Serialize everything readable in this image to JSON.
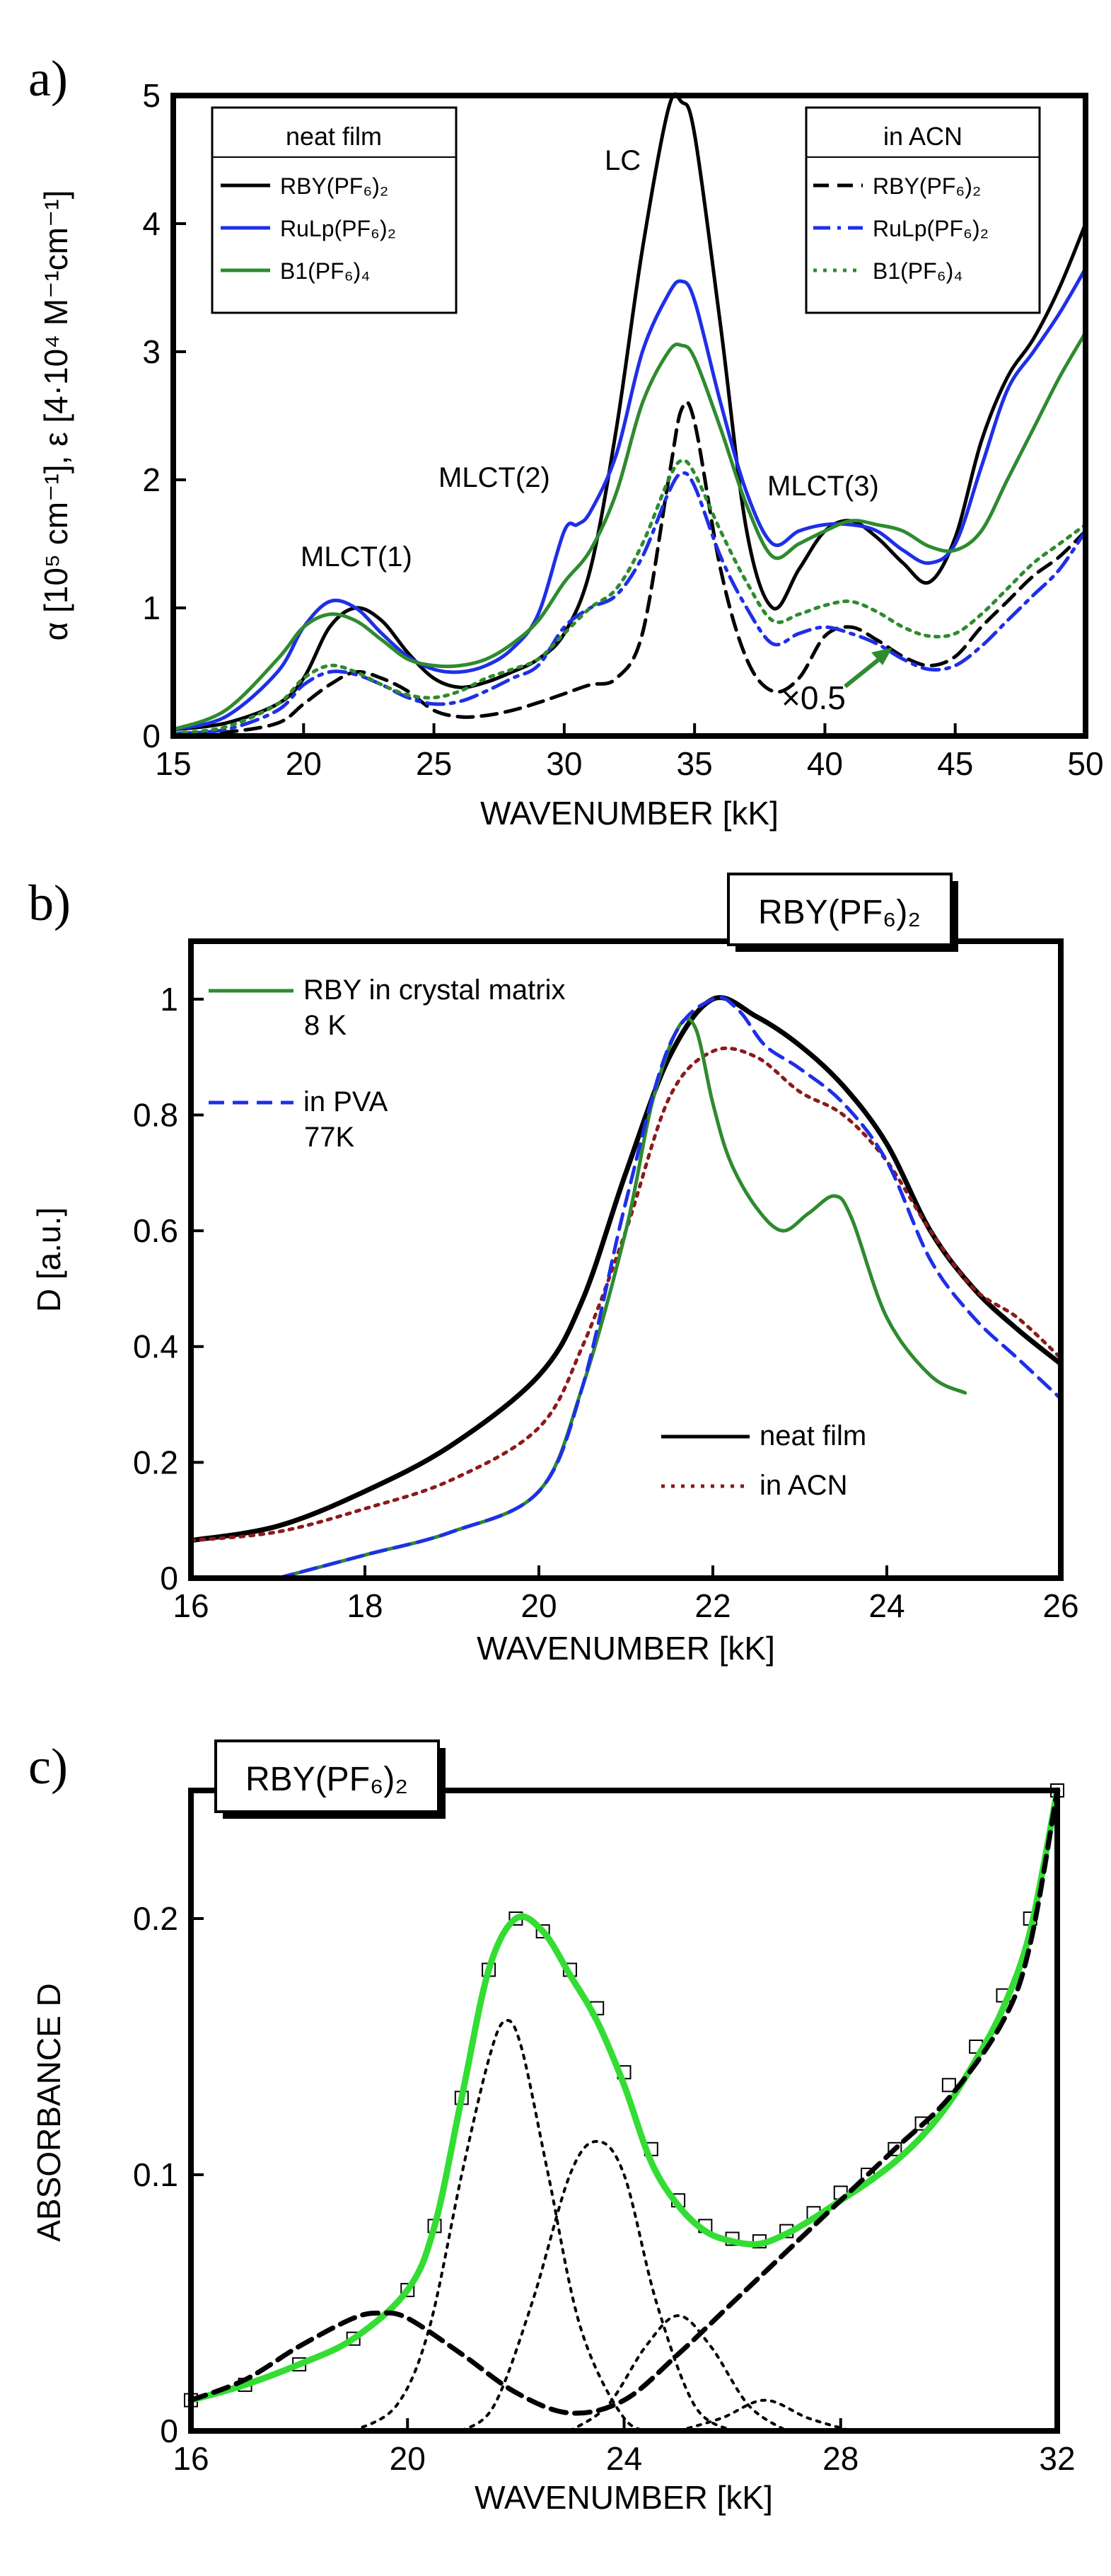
{
  "chart_data": [
    {
      "panel": "a)",
      "type": "line",
      "xlabel": "WAVENUMBER [kK]",
      "ylabel": "α [10⁵ cm⁻¹], ε [4·10⁴ M⁻¹cm⁻¹]",
      "xlim": [
        15,
        50
      ],
      "ylim": [
        0,
        5
      ],
      "xticks": [
        "15",
        "20",
        "25",
        "30",
        "35",
        "40",
        "45",
        "50"
      ],
      "yticks": [
        "0",
        "1",
        "2",
        "3",
        "4",
        "5"
      ],
      "legend_neat_title": "neat film",
      "legend_acn_title": "in ACN",
      "annotations": {
        "lc": "LC",
        "mlct1": "MLCT(1)",
        "mlct2": "MLCT(2)",
        "mlct3": "MLCT(3)",
        "scale": "×0.5"
      },
      "series": [
        {
          "name": "RBY(PF6)2",
          "group": "neat film",
          "color": "#000000",
          "dash": "solid",
          "x": [
            15,
            17,
            19,
            20,
            21,
            22,
            23,
            24,
            25,
            26,
            27,
            28,
            29,
            30,
            31,
            32,
            33,
            34,
            34.5,
            35,
            36,
            37,
            38,
            39,
            40,
            41,
            42,
            43,
            44,
            45,
            46,
            47,
            48,
            49,
            50
          ],
          "y": [
            0.05,
            0.1,
            0.25,
            0.45,
            0.85,
            1.0,
            0.9,
            0.65,
            0.45,
            0.38,
            0.42,
            0.5,
            0.6,
            0.8,
            1.3,
            2.4,
            3.8,
            4.9,
            4.95,
            4.7,
            3.2,
            1.6,
            1.0,
            1.3,
            1.6,
            1.68,
            1.55,
            1.35,
            1.2,
            1.55,
            2.3,
            2.8,
            3.1,
            3.5,
            4.0
          ]
        },
        {
          "name": "RuLp(PF6)2",
          "group": "neat film",
          "color": "#1f2fe6",
          "dash": "solid",
          "x": [
            15,
            17,
            19,
            20,
            21,
            22,
            23,
            24,
            25,
            26,
            27,
            28,
            29,
            30,
            30.5,
            31,
            32,
            33,
            34,
            34.5,
            35,
            36,
            37,
            38,
            39,
            40,
            41,
            42,
            43,
            44,
            45,
            46,
            47,
            48,
            49,
            50
          ],
          "y": [
            0.05,
            0.15,
            0.5,
            0.85,
            1.05,
            1.0,
            0.8,
            0.62,
            0.52,
            0.5,
            0.55,
            0.68,
            0.95,
            1.6,
            1.65,
            1.75,
            2.2,
            3.0,
            3.45,
            3.55,
            3.4,
            2.6,
            1.9,
            1.5,
            1.6,
            1.65,
            1.65,
            1.6,
            1.45,
            1.35,
            1.5,
            2.1,
            2.7,
            3.0,
            3.3,
            3.65
          ]
        },
        {
          "name": "B1(PF6)4",
          "group": "neat film",
          "color": "#2e8b2e",
          "dash": "solid",
          "x": [
            15,
            17,
            19,
            20,
            21,
            22,
            23,
            24,
            25,
            26,
            27,
            28,
            29,
            30,
            31,
            32,
            33,
            34,
            34.5,
            35,
            36,
            37,
            38,
            39,
            40,
            41,
            42,
            43,
            44,
            45,
            46,
            47,
            48,
            49,
            50
          ],
          "y": [
            0.05,
            0.2,
            0.6,
            0.85,
            0.95,
            0.9,
            0.75,
            0.6,
            0.55,
            0.55,
            0.6,
            0.72,
            0.9,
            1.2,
            1.45,
            1.9,
            2.6,
            3.0,
            3.05,
            2.95,
            2.4,
            1.8,
            1.4,
            1.5,
            1.6,
            1.68,
            1.65,
            1.6,
            1.48,
            1.45,
            1.6,
            2.0,
            2.4,
            2.8,
            3.15
          ]
        },
        {
          "name": "RBY(PF6)2",
          "group": "in ACN",
          "color": "#000000",
          "dash": "dash",
          "x": [
            15,
            17,
            19,
            20,
            21,
            22,
            23,
            24,
            25,
            26,
            27,
            28,
            29,
            30,
            31,
            32,
            33,
            34,
            34.5,
            35,
            36,
            37,
            38,
            39,
            40,
            41,
            42,
            43,
            44,
            45,
            46,
            47,
            48,
            49,
            50
          ],
          "y": [
            0.02,
            0.03,
            0.1,
            0.25,
            0.4,
            0.5,
            0.45,
            0.35,
            0.2,
            0.15,
            0.16,
            0.2,
            0.26,
            0.33,
            0.4,
            0.45,
            0.8,
            2.0,
            2.55,
            2.45,
            1.3,
            0.6,
            0.35,
            0.45,
            0.78,
            0.85,
            0.75,
            0.62,
            0.55,
            0.62,
            0.85,
            1.05,
            1.25,
            1.4,
            1.6
          ]
        },
        {
          "name": "RuLp(PF6)2",
          "group": "in ACN",
          "color": "#1f2fe6",
          "dash": "dashdot",
          "x": [
            15,
            17,
            19,
            20,
            21,
            22,
            23,
            24,
            25,
            26,
            27,
            28,
            29,
            30,
            31,
            32,
            33,
            34,
            34.5,
            35,
            36,
            37,
            38,
            39,
            40,
            41,
            42,
            43,
            44,
            45,
            46,
            47,
            48,
            49,
            50
          ],
          "y": [
            0.02,
            0.05,
            0.2,
            0.4,
            0.5,
            0.48,
            0.4,
            0.3,
            0.25,
            0.27,
            0.35,
            0.45,
            0.55,
            0.85,
            1.0,
            1.1,
            1.4,
            1.9,
            2.05,
            1.95,
            1.4,
            1.0,
            0.72,
            0.8,
            0.85,
            0.8,
            0.72,
            0.6,
            0.52,
            0.55,
            0.7,
            0.9,
            1.1,
            1.3,
            1.6
          ]
        },
        {
          "name": "B1(PF6)4",
          "group": "in ACN",
          "color": "#2e8b2e",
          "dash": "dot",
          "x": [
            15,
            17,
            19,
            20,
            21,
            22,
            23,
            24,
            25,
            26,
            27,
            28,
            29,
            30,
            31,
            32,
            33,
            34,
            34.5,
            35,
            36,
            37,
            38,
            39,
            40,
            41,
            42,
            43,
            44,
            45,
            46,
            47,
            48,
            49,
            50
          ],
          "y": [
            0.02,
            0.07,
            0.25,
            0.45,
            0.55,
            0.5,
            0.4,
            0.32,
            0.3,
            0.35,
            0.45,
            0.52,
            0.6,
            0.8,
            1.0,
            1.15,
            1.5,
            2.0,
            2.15,
            2.05,
            1.6,
            1.2,
            0.9,
            0.95,
            1.02,
            1.05,
            0.97,
            0.85,
            0.78,
            0.8,
            0.95,
            1.15,
            1.35,
            1.5,
            1.65
          ]
        }
      ],
      "legend": [
        {
          "label": "RBY(PF₆)₂",
          "color": "#000000",
          "dash": "solid"
        },
        {
          "label": "RuLp(PF₆)₂",
          "color": "#1f2fe6",
          "dash": "solid"
        },
        {
          "label": "B1(PF₆)₄",
          "color": "#2e8b2e",
          "dash": "solid"
        },
        {
          "label": "RBY(PF₆)₂",
          "color": "#000000",
          "dash": "dash"
        },
        {
          "label": "RuLp(PF₆)₂",
          "color": "#1f2fe6",
          "dash": "dashdot"
        },
        {
          "label": "B1(PF₆)₄",
          "color": "#2e8b2e",
          "dash": "dot"
        }
      ]
    },
    {
      "panel": "b)",
      "type": "line",
      "title": "RBY(PF₆)₂",
      "xlabel": "WAVENUMBER [kK]",
      "ylabel": "D [a.u.]",
      "xlim": [
        16,
        26
      ],
      "ylim": [
        0,
        1.1
      ],
      "xticks": [
        "16",
        "18",
        "20",
        "22",
        "24",
        "26"
      ],
      "yticks": [
        "0",
        "0.2",
        "0.4",
        "0.6",
        "0.8",
        "1"
      ],
      "series": [
        {
          "name": "neat film",
          "color": "#000000",
          "dash": "solid",
          "x": [
            16,
            17,
            18,
            19,
            20,
            20.5,
            21,
            21.5,
            22,
            22.5,
            23,
            23.5,
            24,
            24.5,
            25,
            25.5,
            26
          ],
          "y": [
            0.065,
            0.09,
            0.15,
            0.23,
            0.35,
            0.48,
            0.7,
            0.9,
            1.0,
            0.97,
            0.92,
            0.85,
            0.75,
            0.6,
            0.5,
            0.43,
            0.37
          ]
        },
        {
          "name": "in ACN",
          "color": "#8b1a1a",
          "dash": "dot",
          "x": [
            16,
            17,
            18,
            19,
            20,
            20.5,
            21,
            21.5,
            22,
            22.5,
            23,
            23.5,
            24,
            24.5,
            25,
            25.5,
            26
          ],
          "y": [
            0.065,
            0.08,
            0.12,
            0.17,
            0.26,
            0.4,
            0.6,
            0.83,
            0.91,
            0.9,
            0.84,
            0.8,
            0.72,
            0.6,
            0.5,
            0.45,
            0.38
          ]
        },
        {
          "name": "RBY in crystal matrix 8 K",
          "color": "#2e8b2e",
          "dash": "solid",
          "x": [
            17,
            18,
            19,
            20,
            20.5,
            21,
            21.3,
            21.6,
            21.8,
            22,
            22.2,
            22.5,
            22.8,
            23.1,
            23.4,
            23.6,
            24,
            24.5,
            24.9
          ],
          "y": [
            0.0,
            0.04,
            0.08,
            0.15,
            0.33,
            0.6,
            0.82,
            0.95,
            0.95,
            0.82,
            0.72,
            0.64,
            0.6,
            0.63,
            0.66,
            0.62,
            0.45,
            0.35,
            0.32
          ]
        },
        {
          "name": "in PVA 77K",
          "color": "#1f2fe6",
          "dash": "dash",
          "x": [
            17,
            18,
            19,
            20,
            20.5,
            21,
            21.5,
            22,
            22.3,
            22.6,
            23,
            23.5,
            24,
            24.5,
            25,
            25.5,
            26
          ],
          "y": [
            0.0,
            0.04,
            0.08,
            0.15,
            0.33,
            0.65,
            0.92,
            1.0,
            0.98,
            0.92,
            0.88,
            0.82,
            0.72,
            0.55,
            0.45,
            0.38,
            0.31
          ]
        }
      ],
      "legend": [
        {
          "label": "RBY in crystal matrix",
          "sub": "8 K",
          "color": "#2e8b2e",
          "dash": "solid"
        },
        {
          "label": "in PVA",
          "sub": "77K",
          "color": "#1f2fe6",
          "dash": "dash"
        },
        {
          "label": "neat film",
          "color": "#000000",
          "dash": "solid"
        },
        {
          "label": "in ACN",
          "color": "#8b1a1a",
          "dash": "dot"
        }
      ]
    },
    {
      "panel": "c)",
      "type": "line",
      "title": "RBY(PF₆)₂",
      "xlabel": "WAVENUMBER [kK]",
      "ylabel": "ABSORBANCE D",
      "xlim": [
        16,
        32
      ],
      "ylim": [
        0,
        0.25
      ],
      "xticks": [
        "16",
        "20",
        "24",
        "28",
        "32"
      ],
      "yticks": [
        "0",
        "0.1",
        "0.2"
      ],
      "series": [
        {
          "name": "measured",
          "color": "#000000",
          "style": "open-squares",
          "x": [
            16,
            17,
            18,
            19,
            20,
            20.5,
            21,
            21.5,
            22,
            22.5,
            23,
            23.5,
            24,
            24.5,
            25,
            25.5,
            26,
            26.5,
            27,
            27.5,
            28,
            28.5,
            29,
            29.5,
            30,
            30.5,
            31,
            31.5,
            32
          ],
          "y": [
            0.012,
            0.018,
            0.026,
            0.036,
            0.055,
            0.08,
            0.13,
            0.18,
            0.2,
            0.195,
            0.18,
            0.165,
            0.14,
            0.11,
            0.09,
            0.08,
            0.075,
            0.074,
            0.078,
            0.085,
            0.093,
            0.1,
            0.11,
            0.12,
            0.135,
            0.15,
            0.17,
            0.2,
            0.25
          ]
        },
        {
          "name": "fit",
          "color": "#33dd33",
          "dash": "solid",
          "x": [
            16,
            17,
            18,
            19,
            20,
            20.5,
            21,
            21.5,
            22,
            22.5,
            23,
            23.5,
            24,
            24.5,
            25,
            25.5,
            26,
            26.5,
            27,
            27.5,
            28,
            28.5,
            29,
            29.5,
            30,
            30.5,
            31,
            31.5,
            32
          ],
          "y": [
            0.012,
            0.018,
            0.026,
            0.036,
            0.055,
            0.08,
            0.13,
            0.18,
            0.2,
            0.195,
            0.178,
            0.16,
            0.135,
            0.105,
            0.088,
            0.078,
            0.074,
            0.073,
            0.077,
            0.083,
            0.09,
            0.097,
            0.105,
            0.115,
            0.128,
            0.145,
            0.165,
            0.195,
            0.25
          ]
        },
        {
          "name": "background",
          "color": "#000000",
          "dash": "dash",
          "x": [
            16,
            17,
            18,
            19,
            19.5,
            20,
            21,
            22,
            23,
            24,
            25,
            26,
            27,
            28,
            29,
            30,
            31,
            31.5,
            32
          ],
          "y": [
            0.012,
            0.02,
            0.033,
            0.044,
            0.046,
            0.044,
            0.03,
            0.015,
            0.007,
            0.012,
            0.03,
            0.05,
            0.07,
            0.09,
            0.11,
            0.13,
            0.16,
            0.19,
            0.25
          ]
        },
        {
          "name": "band 1",
          "color": "#000000",
          "dash": "dot",
          "x": [
            19,
            19.8,
            20.4,
            21,
            21.5,
            21.8,
            22.1,
            22.6,
            23.2,
            24,
            24.6
          ],
          "y": [
            0.0,
            0.01,
            0.04,
            0.1,
            0.145,
            0.16,
            0.15,
            0.1,
            0.04,
            0.005,
            0.0
          ]
        },
        {
          "name": "band 2",
          "color": "#000000",
          "dash": "dot",
          "x": [
            21,
            21.6,
            22.3,
            23,
            23.5,
            24,
            24.6,
            25.3,
            26
          ],
          "y": [
            0.0,
            0.01,
            0.05,
            0.1,
            0.113,
            0.1,
            0.05,
            0.01,
            0.0
          ]
        },
        {
          "name": "band 3",
          "color": "#000000",
          "dash": "dot",
          "x": [
            23,
            23.7,
            24.4,
            25,
            25.6,
            26.3,
            27
          ],
          "y": [
            0.0,
            0.01,
            0.033,
            0.045,
            0.033,
            0.01,
            0.0
          ]
        },
        {
          "name": "band 4",
          "color": "#000000",
          "dash": "dot",
          "x": [
            25,
            25.8,
            26.6,
            27.4,
            28.2
          ],
          "y": [
            0.0,
            0.005,
            0.012,
            0.005,
            0.0
          ]
        }
      ]
    }
  ]
}
